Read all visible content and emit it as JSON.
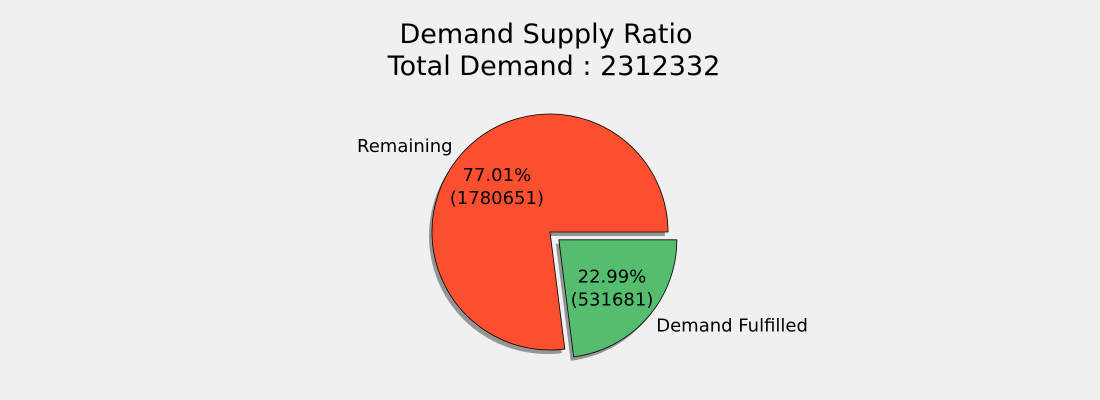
{
  "chart_data": {
    "type": "pie",
    "title": "Demand Supply Ratio",
    "subtitle": "Total Demand : 2312332",
    "background": "#f0f0f0",
    "slices": [
      {
        "label": "Remaining",
        "value": 1780651,
        "percent_label": "77.01%",
        "value_label": "(1780651)",
        "color": "#fc4f30",
        "exploded": false
      },
      {
        "label": "Demand Fulfilled",
        "value": 531681,
        "percent_label": "22.99%",
        "value_label": "(531681)",
        "color": "#55bd6e",
        "exploded": true
      }
    ],
    "shadow": true,
    "legend": "none"
  }
}
